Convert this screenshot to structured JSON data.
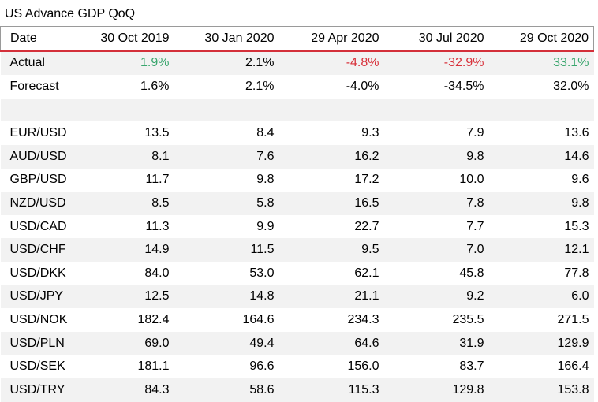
{
  "title": "US Advance GDP QoQ",
  "header": [
    "Date",
    "30 Oct 2019",
    "30 Jan 2020",
    "29 Apr 2020",
    "30 Jul 2020",
    "29 Oct 2020"
  ],
  "actual": {
    "label": "Actual",
    "values": [
      "1.9%",
      "2.1%",
      "-4.8%",
      "-32.9%",
      "33.1%"
    ],
    "colors": [
      "#3aa66e",
      "#000000",
      "#d8313b",
      "#d8313b",
      "#3aa66e"
    ]
  },
  "forecast": {
    "label": "Forecast",
    "values": [
      "1.6%",
      "2.1%",
      "-4.0%",
      "-34.5%",
      "32.0%"
    ]
  },
  "pairs": [
    {
      "label": "EUR/USD",
      "values": [
        "13.5",
        "8.4",
        "9.3",
        "7.9",
        "13.6"
      ]
    },
    {
      "label": "AUD/USD",
      "values": [
        "8.1",
        "7.6",
        "16.2",
        "9.8",
        "14.6"
      ]
    },
    {
      "label": "GBP/USD",
      "values": [
        "11.7",
        "9.8",
        "17.2",
        "10.0",
        "9.6"
      ]
    },
    {
      "label": "NZD/USD",
      "values": [
        "8.5",
        "5.8",
        "16.5",
        "7.8",
        "9.8"
      ]
    },
    {
      "label": "USD/CAD",
      "values": [
        "11.3",
        "9.9",
        "22.7",
        "7.7",
        "15.3"
      ]
    },
    {
      "label": "USD/CHF",
      "values": [
        "14.9",
        "11.5",
        "9.5",
        "7.0",
        "12.1"
      ]
    },
    {
      "label": "USD/DKK",
      "values": [
        "84.0",
        "53.0",
        "62.1",
        "45.8",
        "77.8"
      ]
    },
    {
      "label": "USD/JPY",
      "values": [
        "12.5",
        "14.8",
        "21.1",
        "9.2",
        "6.0"
      ]
    },
    {
      "label": "USD/NOK",
      "values": [
        "182.4",
        "164.6",
        "234.3",
        "235.5",
        "271.5"
      ]
    },
    {
      "label": "USD/PLN",
      "values": [
        "69.0",
        "49.4",
        "64.6",
        "31.9",
        "129.9"
      ]
    },
    {
      "label": "USD/SEK",
      "values": [
        "181.1",
        "96.6",
        "156.0",
        "83.7",
        "166.4"
      ]
    },
    {
      "label": "USD/TRY",
      "values": [
        "84.3",
        "58.6",
        "115.3",
        "129.8",
        "153.8"
      ]
    }
  ]
}
